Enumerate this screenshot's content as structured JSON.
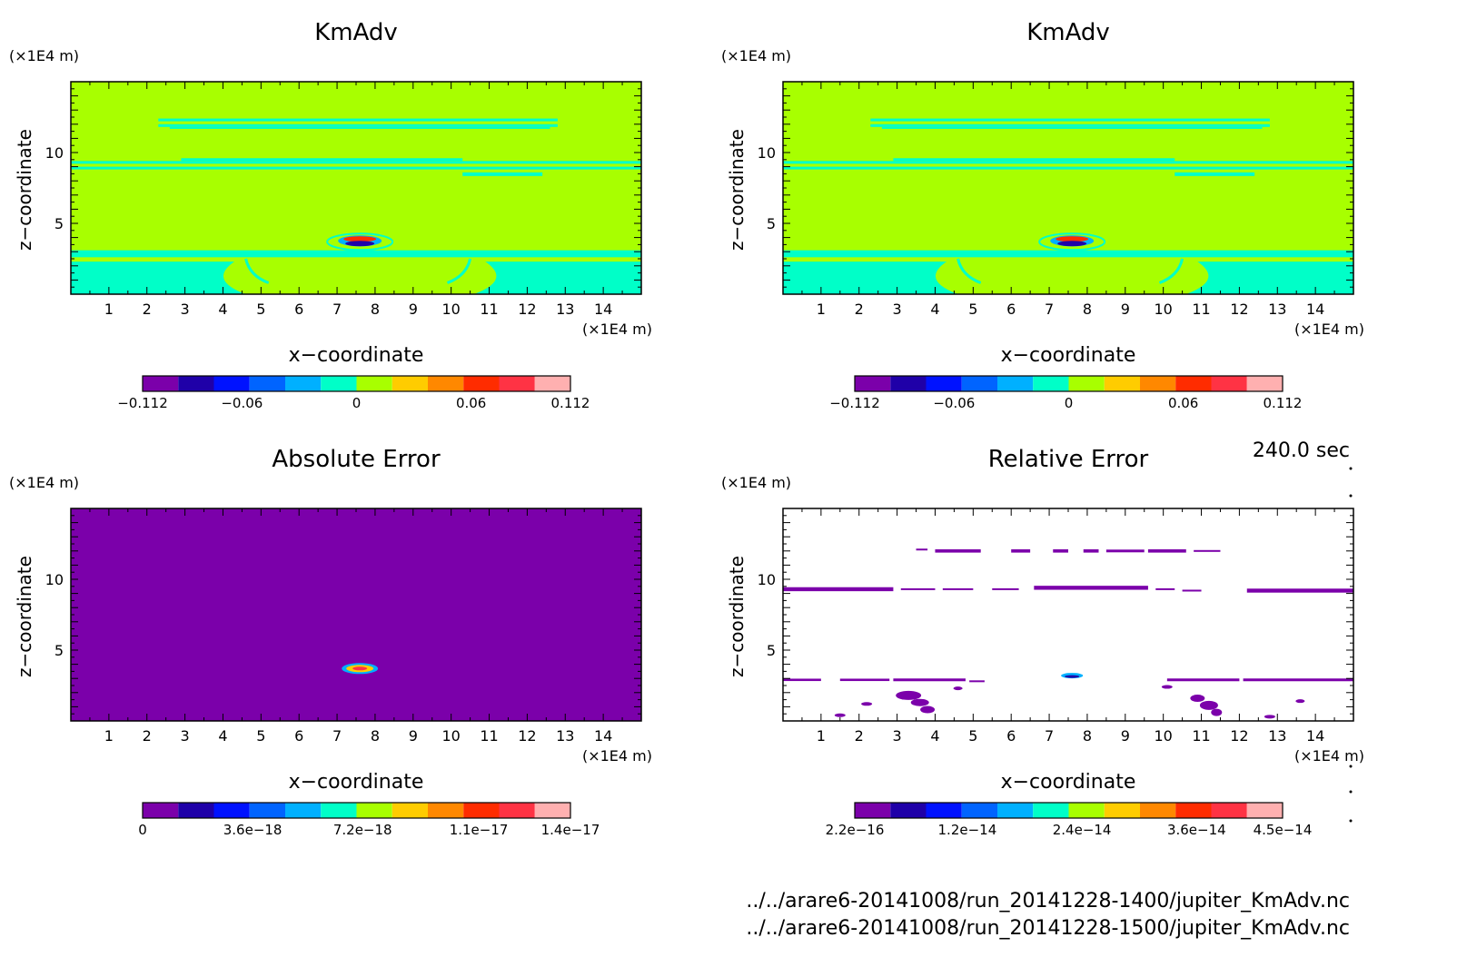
{
  "page": {
    "time_label": "240.0 sec",
    "file_1": "../../arare6-20141008/run_20141228-1400/jupiter_KmAdv.nc",
    "file_2": "../../arare6-20141008/run_20141228-1500/jupiter_KmAdv.nc"
  },
  "colors": {
    "palette": [
      "#7b00aa",
      "#1f00a8",
      "#0012ff",
      "#0064ff",
      "#00b0ff",
      "#00ffc8",
      "#a8ff00",
      "#ffcc00",
      "#ff8800",
      "#ff2c00",
      "#ff3344",
      "#ffb0b0"
    ],
    "background_field": "#a8ff00",
    "band_field": "#00ffc8",
    "low_field": "#7b00aa"
  },
  "chart_data": [
    {
      "type": "heatmap",
      "title": "KmAdv",
      "xlabel": "x−coordinate",
      "ylabel": "z−coordinate",
      "x_unit": "(×1E4 m)",
      "y_unit": "(×1E4 m)",
      "xlim": [
        0,
        15
      ],
      "ylim": [
        0,
        15
      ],
      "x_ticks": [
        "1",
        "2",
        "3",
        "4",
        "5",
        "6",
        "7",
        "8",
        "9",
        "10",
        "11",
        "12",
        "13",
        "14"
      ],
      "y_ticks": [
        "5",
        "10"
      ],
      "colorbar_labels": [
        "−0.112",
        "−0.06",
        "0",
        "0.06",
        "0.112"
      ],
      "colorbar_range": [
        -0.112,
        0.112
      ]
    },
    {
      "type": "heatmap",
      "title": "KmAdv",
      "xlabel": "x−coordinate",
      "ylabel": "z−coordinate",
      "x_unit": "(×1E4 m)",
      "y_unit": "(×1E4 m)",
      "xlim": [
        0,
        15
      ],
      "ylim": [
        0,
        15
      ],
      "x_ticks": [
        "1",
        "2",
        "3",
        "4",
        "5",
        "6",
        "7",
        "8",
        "9",
        "10",
        "11",
        "12",
        "13",
        "14"
      ],
      "y_ticks": [
        "5",
        "10"
      ],
      "colorbar_labels": [
        "−0.112",
        "−0.06",
        "0",
        "0.06",
        "0.112"
      ],
      "colorbar_range": [
        -0.112,
        0.112
      ]
    },
    {
      "type": "heatmap",
      "title": "Absolute Error",
      "xlabel": "x−coordinate",
      "ylabel": "z−coordinate",
      "x_unit": "(×1E4 m)",
      "y_unit": "(×1E4 m)",
      "xlim": [
        0,
        15
      ],
      "ylim": [
        0,
        15
      ],
      "x_ticks": [
        "1",
        "2",
        "3",
        "4",
        "5",
        "6",
        "7",
        "8",
        "9",
        "10",
        "11",
        "12",
        "13",
        "14"
      ],
      "y_ticks": [
        "5",
        "10"
      ],
      "colorbar_labels": [
        "0",
        "3.6e−18",
        "7.2e−18",
        "1.1e−17",
        "1.4e−17"
      ],
      "colorbar_range": [
        0,
        1.4e-17
      ]
    },
    {
      "type": "heatmap",
      "title": "Relative Error",
      "xlabel": "x−coordinate",
      "ylabel": "z−coordinate",
      "x_unit": "(×1E4 m)",
      "y_unit": "(×1E4 m)",
      "xlim": [
        0,
        15
      ],
      "ylim": [
        0,
        15
      ],
      "x_ticks": [
        "1",
        "2",
        "3",
        "4",
        "5",
        "6",
        "7",
        "8",
        "9",
        "10",
        "11",
        "12",
        "13",
        "14"
      ],
      "y_ticks": [
        "5",
        "10"
      ],
      "colorbar_labels": [
        "2.2e−16",
        "1.2e−14",
        "2.4e−14",
        "3.6e−14",
        "4.5e−14"
      ],
      "colorbar_range": [
        2.2e-16,
        4.5e-14
      ]
    }
  ]
}
